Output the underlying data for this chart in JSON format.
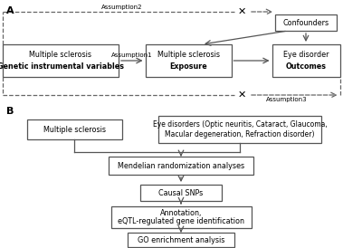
{
  "bg_color": "#ffffff",
  "box_edgecolor": "#555555",
  "text_color": "#000000",
  "arrow_color": "#555555",
  "dashed_color": "#666666",
  "figsize": [
    4.0,
    2.74
  ],
  "dpi": 100,
  "panel_A_label": "A",
  "panel_B_label": "B",
  "boxA1_line1": "Multiple sclerosis",
  "boxA1_line2": "Genetic instrumental variables",
  "boxA2_line1": "Multiple sclerosis",
  "boxA2_line2": "Exposure",
  "boxA3_line1": "Eye disorder",
  "boxA3_line2": "Outcomes",
  "boxA4_text": "Confounders",
  "assumption1": "Assumption1",
  "assumption2": "Assumption2",
  "assumption3": "Assumption3",
  "boxB1_text": "Multiple sclerosis",
  "boxB2_line1": "Eye disorders (Optic neuritis, Cataract, Glaucoma,",
  "boxB2_line2": "Macular degeneration, Refraction disorder)",
  "boxB3_text": "Mendelian randomization analyses",
  "boxB4_text": "Causal SNPs",
  "boxB5_line1": "Annotation,",
  "boxB5_line2": "eQTL-regulated gene identification",
  "boxB6_text": "GO enrichment analysis"
}
